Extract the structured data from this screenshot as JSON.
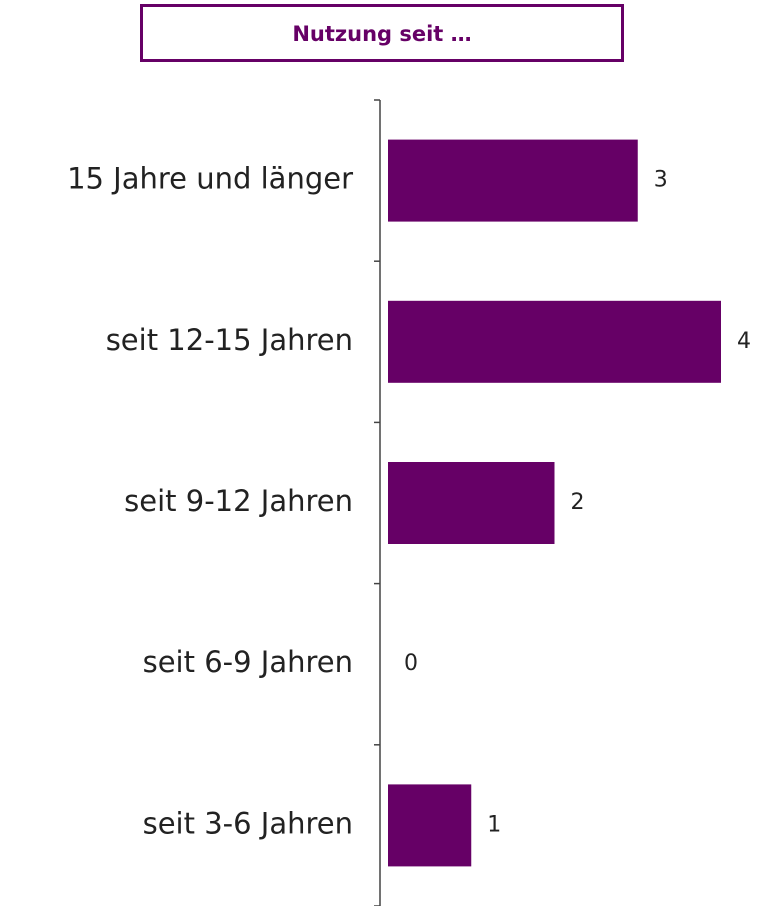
{
  "chart_data": {
    "type": "bar",
    "orientation": "horizontal",
    "title": "Nutzung seit …",
    "categories": [
      "15 Jahre und länger",
      "seit 12-15 Jahren",
      "seit 9-12 Jahren",
      "seit 6-9 Jahren",
      "seit 3-6 Jahren"
    ],
    "values": [
      3,
      4,
      2,
      0,
      1
    ],
    "color": "#660066"
  }
}
